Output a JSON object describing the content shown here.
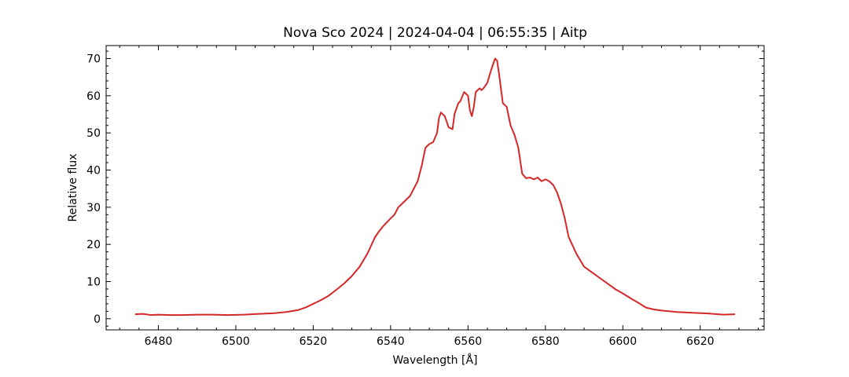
{
  "chart_data": {
    "type": "line",
    "title": "Nova Sco 2024 | 2024-04-04 | 06:55:35 | Aitp",
    "xlabel": "Wavelength [Å]",
    "ylabel": "Relative flux",
    "xlim": [
      6466.5,
      6636.5
    ],
    "ylim": [
      -3,
      73.5
    ],
    "xticks": [
      6480,
      6500,
      6520,
      6540,
      6560,
      6580,
      6600,
      6620
    ],
    "yticks": [
      0,
      10,
      20,
      30,
      40,
      50,
      60,
      70
    ],
    "x_minor_step": 5,
    "y_minor_step": 2,
    "grid": false,
    "legend": "none",
    "series": [
      {
        "color": "#d62728",
        "x": [
          6474,
          6476,
          6478,
          6480,
          6483,
          6486,
          6490,
          6494,
          6498,
          6502,
          6506,
          6510,
          6513,
          6516,
          6518,
          6520,
          6522,
          6524,
          6526,
          6528,
          6530,
          6532,
          6534,
          6536,
          6537,
          6538,
          6540,
          6541,
          6542,
          6543,
          6544,
          6545,
          6546,
          6547,
          6548,
          6549,
          6550,
          6551,
          6552,
          6552.5,
          6553,
          6554,
          6555,
          6556,
          6556.5,
          6557,
          6557.5,
          6558,
          6559,
          6560,
          6560.5,
          6561,
          6561.5,
          6562,
          6563,
          6563.5,
          6564,
          6565,
          6566,
          6567,
          6567.5,
          6568,
          6569,
          6570,
          6571,
          6572,
          6573,
          6574,
          6575,
          6576,
          6577,
          6578,
          6579,
          6580,
          6581,
          6582,
          6583,
          6584,
          6585,
          6586,
          6588,
          6590,
          6592,
          6594,
          6596,
          6598,
          6600,
          6602,
          6604,
          6606,
          6608,
          6610,
          6614,
          6618,
          6622,
          6626,
          6629
        ],
        "y": [
          1.2,
          1.3,
          1.0,
          1.1,
          1.0,
          1.0,
          1.1,
          1.1,
          1.0,
          1.1,
          1.3,
          1.5,
          1.8,
          2.3,
          3.0,
          4.0,
          5.0,
          6.2,
          7.8,
          9.5,
          11.5,
          14.0,
          17.5,
          22.0,
          23.5,
          24.8,
          27.0,
          28.0,
          30.0,
          31.0,
          32.0,
          33.0,
          35.0,
          37.0,
          41.0,
          46.0,
          47.0,
          47.5,
          50.0,
          54.0,
          55.5,
          54.5,
          51.5,
          51.0,
          55.0,
          56.5,
          58.0,
          58.5,
          61.0,
          60.0,
          56.0,
          54.5,
          57.0,
          61.0,
          62.0,
          61.5,
          62.0,
          63.5,
          67.0,
          70.0,
          69.5,
          66.0,
          58.0,
          57.0,
          52.0,
          49.5,
          46.0,
          39.0,
          37.8,
          38.0,
          37.5,
          38.0,
          37.0,
          37.5,
          37.0,
          36.0,
          34.0,
          31.0,
          27.0,
          22.0,
          17.5,
          14.0,
          12.5,
          11.0,
          9.5,
          8.0,
          6.8,
          5.5,
          4.3,
          3.0,
          2.5,
          2.2,
          1.8,
          1.6,
          1.4,
          1.1,
          1.2
        ]
      }
    ]
  }
}
